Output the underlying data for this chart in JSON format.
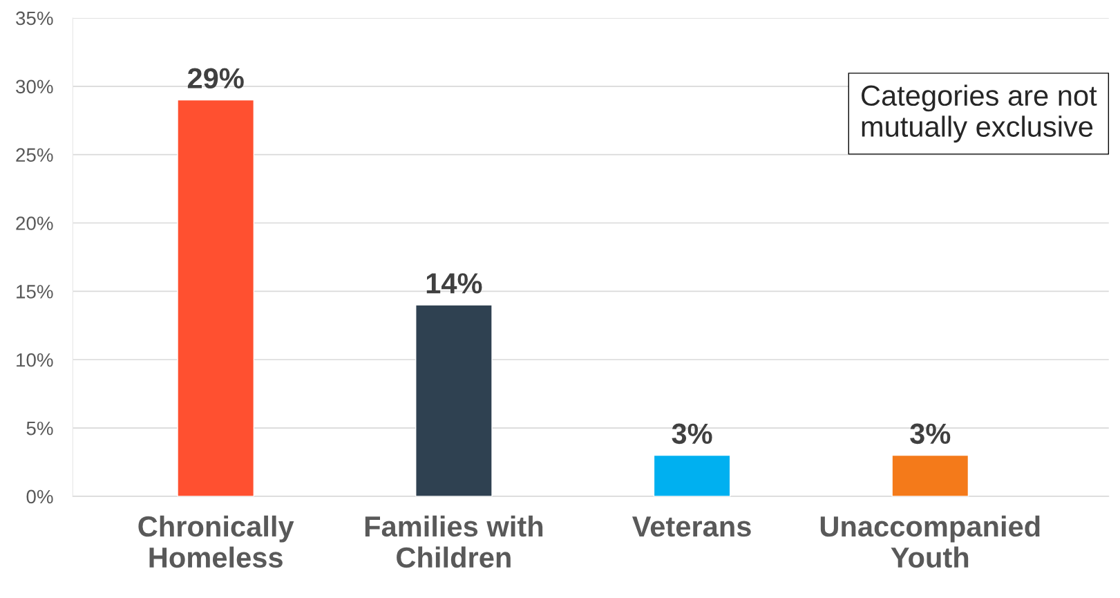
{
  "chart_data": {
    "type": "bar",
    "categories": [
      "Chronically\nHomeless",
      "Families with\nChildren",
      "Veterans",
      "Unaccompanied\nYouth"
    ],
    "values": [
      29,
      14,
      3,
      3
    ],
    "colors": [
      "#ff5030",
      "#2f4151",
      "#00b0f0",
      "#f47a1a"
    ],
    "value_labels": [
      "29%",
      "14%",
      "3%",
      "3%"
    ],
    "ylim": [
      0,
      35
    ],
    "yticks": [
      {
        "value": 0,
        "label": "0%"
      },
      {
        "value": 5,
        "label": "5%"
      },
      {
        "value": 10,
        "label": "10%"
      },
      {
        "value": 15,
        "label": "15%"
      },
      {
        "value": 20,
        "label": "20%"
      },
      {
        "value": 25,
        "label": "25%"
      },
      {
        "value": 30,
        "label": "30%"
      },
      {
        "value": 35,
        "label": "35%"
      }
    ],
    "grid": "y",
    "annotations": [
      "Categories are not mutually exclusive"
    ]
  }
}
